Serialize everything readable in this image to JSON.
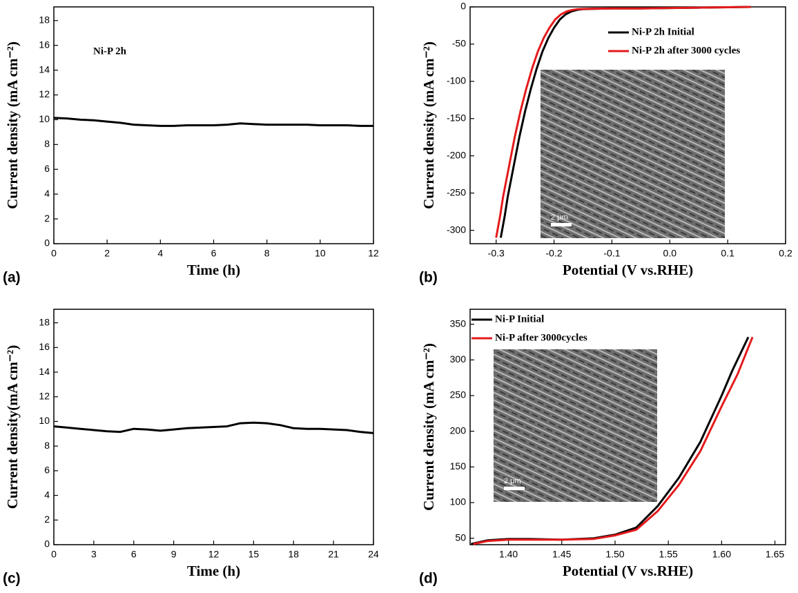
{
  "chart_data": [
    {
      "type": "line",
      "panel": "(a)",
      "annotation": "Ni-P 2h",
      "xlabel": "Time (h)",
      "ylabel": "Current density (mA cm⁻²)",
      "xlim": [
        0,
        12
      ],
      "xticks": [
        0,
        2,
        4,
        6,
        8,
        10,
        12
      ],
      "ylim": [
        0,
        19.1
      ],
      "yticks": [
        0,
        2,
        4,
        6,
        8,
        10,
        12,
        14,
        16,
        18
      ],
      "series": [
        {
          "color": "#000000",
          "x": [
            0,
            0.5,
            1,
            1.5,
            2,
            2.5,
            3,
            3.5,
            4,
            4.5,
            5,
            5.5,
            6,
            6.5,
            7,
            7.5,
            8,
            8.5,
            9,
            9.5,
            10,
            10.5,
            11,
            11.5,
            12
          ],
          "values": [
            10.15,
            10.1,
            10.0,
            9.95,
            9.85,
            9.75,
            9.6,
            9.55,
            9.5,
            9.5,
            9.55,
            9.55,
            9.55,
            9.6,
            9.7,
            9.65,
            9.6,
            9.6,
            9.6,
            9.6,
            9.55,
            9.55,
            9.55,
            9.5,
            9.5
          ]
        }
      ]
    },
    {
      "type": "line",
      "panel": "(b)",
      "xlabel": "Potential (V vs.RHE)",
      "ylabel": "Current density (mA cm⁻²)",
      "legend": "upper right",
      "inset_label": "2 μm",
      "xlim": [
        -0.345,
        0.2
      ],
      "xticks": [
        -0.3,
        -0.2,
        -0.1,
        {
          "value": 0,
          "label": "0.0"
        },
        0.1,
        0.2
      ],
      "ylim": [
        -318,
        0
      ],
      "yticks": [
        -300,
        -250,
        -200,
        -150,
        -100,
        -50,
        0
      ],
      "series": [
        {
          "name": "Ni-P 2h Initial",
          "color": "#000000",
          "x": [
            -0.292,
            -0.285,
            -0.28,
            -0.27,
            -0.26,
            -0.25,
            -0.24,
            -0.23,
            -0.22,
            -0.21,
            -0.2,
            -0.19,
            -0.18,
            -0.17,
            -0.16,
            -0.15,
            -0.13,
            -0.1,
            -0.05,
            0,
            0.05,
            0.1,
            0.14
          ],
          "values": [
            -310,
            -280,
            -255,
            -215,
            -175,
            -140,
            -110,
            -83,
            -60,
            -42,
            -28,
            -17,
            -10,
            -6,
            -4,
            -3,
            -2.5,
            -2,
            -2,
            -1.5,
            -1,
            -0.5,
            0
          ]
        },
        {
          "name": "Ni-P 2h after  3000 cycles",
          "color": "#e41a1c",
          "x": [
            -0.3,
            -0.293,
            -0.288,
            -0.278,
            -0.268,
            -0.258,
            -0.248,
            -0.238,
            -0.228,
            -0.218,
            -0.208,
            -0.198,
            -0.188,
            -0.178,
            -0.168,
            -0.158,
            -0.14,
            -0.1,
            -0.05,
            0,
            0.05,
            0.1,
            0.14
          ],
          "values": [
            -310,
            -280,
            -255,
            -215,
            -175,
            -140,
            -110,
            -83,
            -60,
            -42,
            -28,
            -17,
            -10,
            -6,
            -4,
            -3,
            -2.5,
            -2,
            -2,
            -1.5,
            -1,
            -0.5,
            0
          ]
        }
      ]
    },
    {
      "type": "line",
      "panel": "(c)",
      "xlabel": "Time (h)",
      "ylabel": "Current density(mA cm⁻²)",
      "xlim": [
        0,
        24
      ],
      "xticks": [
        0,
        3,
        6,
        9,
        12,
        15,
        18,
        21,
        24
      ],
      "ylim": [
        0,
        19.1
      ],
      "yticks": [
        0,
        2,
        4,
        6,
        8,
        10,
        12,
        14,
        16,
        18
      ],
      "series": [
        {
          "color": "#000000",
          "x": [
            0,
            1,
            2,
            3,
            4,
            5,
            6,
            7,
            8,
            9,
            10,
            11,
            12,
            13,
            14,
            15,
            16,
            17,
            18,
            19,
            20,
            21,
            22,
            23,
            24
          ],
          "values": [
            9.6,
            9.5,
            9.4,
            9.3,
            9.2,
            9.15,
            9.4,
            9.35,
            9.25,
            9.35,
            9.45,
            9.5,
            9.55,
            9.6,
            9.85,
            9.9,
            9.85,
            9.7,
            9.45,
            9.4,
            9.4,
            9.35,
            9.3,
            9.15,
            9.05
          ]
        }
      ]
    },
    {
      "type": "line",
      "panel": "(d)",
      "xlabel": "Potential (V vs.RHE)",
      "ylabel": "Current density (mA cm⁻²)",
      "legend": "upper left",
      "inset_label": "2 μm",
      "xlim": [
        1.364,
        1.66
      ],
      "xticks": [
        {
          "value": 1.4,
          "label": "1.40"
        },
        1.45,
        {
          "value": 1.5,
          "label": "1.50"
        },
        1.55,
        {
          "value": 1.6,
          "label": "1.60"
        },
        1.65
      ],
      "ylim": [
        41,
        371
      ],
      "yticks": [
        50,
        100,
        150,
        200,
        250,
        300,
        350
      ],
      "series": [
        {
          "name": "Ni-P Initial",
          "color": "#000000",
          "x": [
            1.365,
            1.38,
            1.4,
            1.42,
            1.45,
            1.48,
            1.5,
            1.52,
            1.54,
            1.56,
            1.58,
            1.6,
            1.61,
            1.625
          ],
          "values": [
            42,
            47,
            49,
            49,
            48,
            50,
            55,
            65,
            95,
            135,
            185,
            250,
            285,
            332
          ]
        },
        {
          "name": "Ni-P after 3000cycles",
          "color": "#e41a1c",
          "x": [
            1.367,
            1.38,
            1.4,
            1.42,
            1.45,
            1.48,
            1.5,
            1.52,
            1.54,
            1.56,
            1.58,
            1.6,
            1.615,
            1.629
          ],
          "values": [
            42,
            46,
            48,
            48,
            48,
            49,
            54,
            62,
            88,
            125,
            172,
            235,
            280,
            332
          ]
        }
      ]
    }
  ]
}
